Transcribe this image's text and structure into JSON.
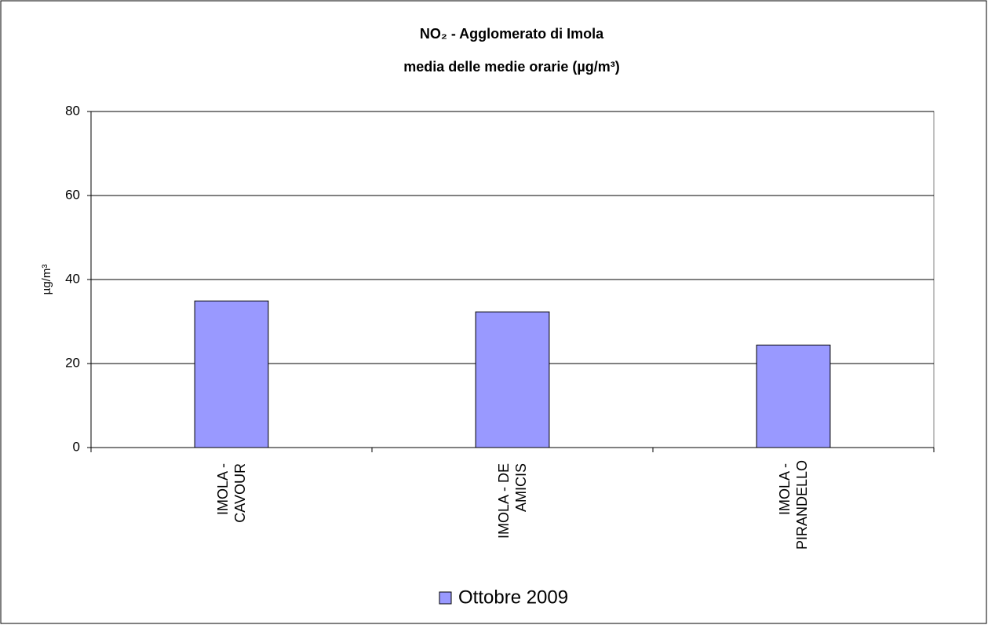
{
  "chart_data": {
    "type": "bar",
    "title": "NO₂ - Agglomerato di Imola",
    "subtitle": "media delle medie orarie (µg/m³)",
    "y_label": "µg/m³",
    "categories": [
      "IMOLA - CAVOUR",
      "IMOLA - DE AMICIS",
      "IMOLA - PIRANDELLO"
    ],
    "series": [
      {
        "name": "Ottobre 2009",
        "color": "#9999ff",
        "values": [
          34.9,
          32.3,
          24.4
        ]
      }
    ],
    "ylim": [
      0,
      80
    ],
    "yticks": [
      0,
      20,
      40,
      60,
      80
    ],
    "grid": true,
    "legend": "bottom"
  }
}
